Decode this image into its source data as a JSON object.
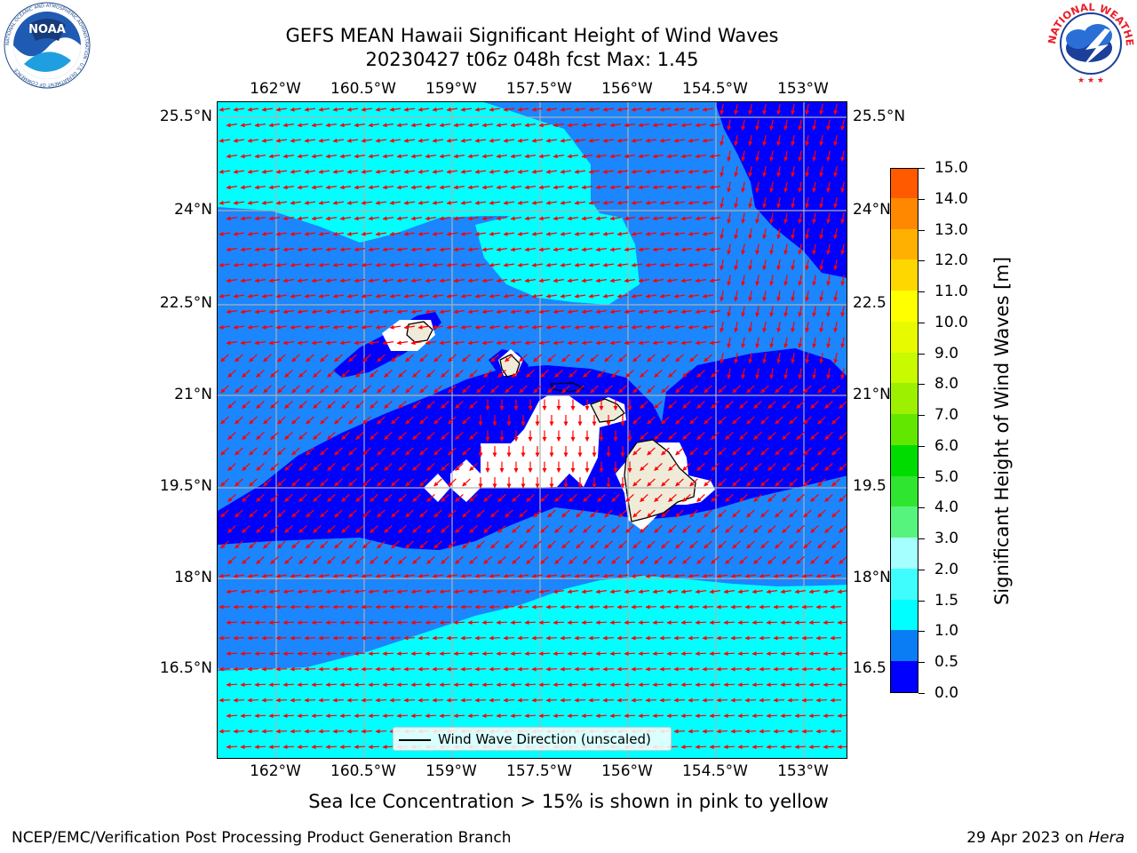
{
  "title_line1": "GEFS MEAN Hawaii Significant Height of Wind Waves",
  "title_line2": "20230427 t06z 048h fcst   Max: 1.45",
  "lon_ticks": [
    "162°W",
    "160.5°W",
    "159°W",
    "157.5°W",
    "156°W",
    "154.5°W",
    "153°W"
  ],
  "lat_ticks": [
    "25.5°N",
    "24°N",
    "22.5°N",
    "21°N",
    "19.5°N",
    "18°N",
    "16.5°N"
  ],
  "right_lat_ticks": [
    "25.5°N",
    "24°N",
    "22.5",
    "21°N",
    "19.5",
    "18°N",
    "16.5"
  ],
  "colorbar": {
    "title": "Significant Height of Wind Waves [m]",
    "labels": [
      "15.0",
      "14.0",
      "13.0",
      "12.0",
      "11.0",
      "10.0",
      "9.0",
      "8.0",
      "7.0",
      "6.0",
      "5.0",
      "4.0",
      "3.0",
      "2.0",
      "1.5",
      "1.0",
      "0.5",
      "0.0"
    ],
    "colors": [
      "#0000ff",
      "#0a7df5",
      "#00ffff",
      "#40fdfd",
      "#a5ffff",
      "#57f47d",
      "#2fe52f",
      "#00dc00",
      "#62e800",
      "#9cf000",
      "#c8fa00",
      "#e8fa00",
      "#ffff00",
      "#ffd700",
      "#ffb000",
      "#ff8800",
      "#ff5a00",
      "#ff2a00",
      "#ff0000"
    ]
  },
  "map_colors": {
    "band_lt_0_5": "#0000ff",
    "band_0_5_1_0": "#1b86fd",
    "band_1_0_1_5": "#00ffff",
    "land": "#efebd8",
    "arrows": "#ff0000",
    "grid": "#b0b0b0"
  },
  "legend_label": "Wind Wave Direction (unscaled)",
  "ice_note": "Sea Ice Concentration > 15% is shown in pink to yellow",
  "footer_left": "NCEP/EMC/Verification Post Processing Product Generation Branch",
  "footer_right_prefix": "29 Apr 2023 on ",
  "footer_right_host": "Hera",
  "logo_left_text": "NOAA",
  "logo_left_ring": "NATIONAL OCEANIC AND ATMOSPHERIC ADMINISTRATION · U.S. DEPARTMENT OF COMMERCE",
  "logo_right_ring": "NATIONAL WEATHER SERVICE"
}
